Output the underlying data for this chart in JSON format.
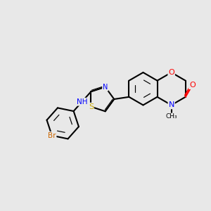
{
  "bg_color": "#e8e8e8",
  "bond_color": "#000000",
  "bond_width": 1.5,
  "atom_colors": {
    "O": "#ff0000",
    "N": "#0000ff",
    "S": "#ccaa00",
    "Br": "#cc6600",
    "C": "#000000",
    "H": "#808080"
  },
  "font_size": 8
}
